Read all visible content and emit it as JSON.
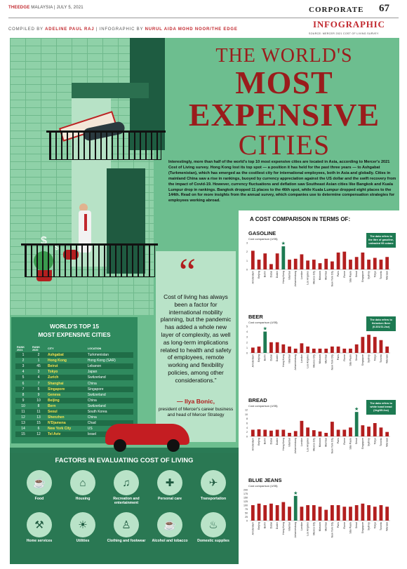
{
  "header": {
    "masthead_brand": "THEEDGE",
    "masthead_rest": " MALAYSIA  |  JULY 5, 2021",
    "section": "CORPORATE",
    "page_number": "67",
    "tag": "INFOGRAPHIC",
    "compiled_prefix": "COMPILED BY ",
    "compiler": "ADELINE PAUL RAJ",
    "infographic_prefix": " | INFOGRAPHIC BY ",
    "designer": "NURUL AIDA MOHD NOOR/THE EDGE",
    "source": "SOURCE: MERCER 2021 COST OF LIVING SURVEY"
  },
  "title": {
    "line1": "THE WORLD'S",
    "line2": "MOST",
    "line3": "EXPENSIVE",
    "line4": "CITIES"
  },
  "intro": "Interestingly, more than half of the world's top 10 most expensive cities are located in Asia, according to Mercer's 2021 Cost of Living survey. Hong Kong lost its top spot — a position it has held for the past three years — to Ashgabat (Turkmenistan), which has emerged as the costliest city for international employees, both in Asia and globally. Cities in mainland China saw a rise in rankings, buoyed by currency appreciation against the US dollar and the swift recovery from the impact of Covid-19. However, currency fluctuations and deflation saw Southeast Asian cities like Bangkok and Kuala Lumpur drop in rankings. Bangkok dropped 11 places to the 46th spot, while Kuala Lumpur dropped eight places to the 144th. Read on for more insights from the annual survey, which companies use to determine compensation strategies for employees working abroad.",
  "quote": {
    "mark": "“",
    "text": "Cost of living has always been a factor for international mobility planning, but the pandemic has added a whole new layer of complexity, as well as long-term implications related to health and safety of employees, remote working and flexibility policies, among other considerations.”",
    "name": "— Ilya Bonic,",
    "role": "president of Mercer's career business and head of Mercer Strategy"
  },
  "top15": {
    "title_line1": "WORLD'S TOP 15",
    "title_line2": "MOST EXPENSIVE CITIES",
    "headers": [
      "RANK 2021",
      "RANK 2020",
      "CITY",
      "LOCATION"
    ],
    "rows": [
      [
        "1",
        "2",
        "Ashgabat",
        "Turkmenistan"
      ],
      [
        "2",
        "1",
        "Hong Kong",
        "Hong Kong (SAR)"
      ],
      [
        "3",
        "45",
        "Beirut",
        "Lebanon"
      ],
      [
        "4",
        "3",
        "Tokyo",
        "Japan"
      ],
      [
        "5",
        "4",
        "Zurich",
        "Switzerland"
      ],
      [
        "6",
        "7",
        "Shanghai",
        "China"
      ],
      [
        "7",
        "5",
        "Singapore",
        "Singapore"
      ],
      [
        "8",
        "9",
        "Geneva",
        "Switzerland"
      ],
      [
        "9",
        "10",
        "Beijing",
        "China"
      ],
      [
        "10",
        "8",
        "Bern",
        "Switzerland"
      ],
      [
        "11",
        "11",
        "Seoul",
        "South Korea"
      ],
      [
        "12",
        "13",
        "Shenzhen",
        "China"
      ],
      [
        "13",
        "15",
        "N'Djamena",
        "Chad"
      ],
      [
        "14",
        "6",
        "New York City",
        "US"
      ],
      [
        "15",
        "12",
        "Tel Aviv",
        "Israel"
      ]
    ]
  },
  "factors": {
    "title": "FACTORS IN EVALUATING COST OF LIVING",
    "items": [
      {
        "label": "Food",
        "icon": "food-icon",
        "glyph": "☕"
      },
      {
        "label": "Housing",
        "icon": "housing-icon",
        "glyph": "⌂"
      },
      {
        "label": "Recreation and entertainment",
        "icon": "recreation-icon",
        "glyph": "♫"
      },
      {
        "label": "Personal care",
        "icon": "personal-care-icon",
        "glyph": "✚"
      },
      {
        "label": "Transportation",
        "icon": "transportation-icon",
        "glyph": "✈"
      },
      {
        "label": "Home services",
        "icon": "home-services-icon",
        "glyph": "⚒"
      },
      {
        "label": "Utilities",
        "icon": "utilities-icon",
        "glyph": "☀"
      },
      {
        "label": "Clothing and footwear",
        "icon": "clothing-icon",
        "glyph": "♙"
      },
      {
        "label": "Alcohol and tobacco",
        "icon": "alcohol-icon",
        "glyph": "☕"
      },
      {
        "label": "Domestic supplies",
        "icon": "domestic-supplies-icon",
        "glyph": "♨"
      }
    ]
  },
  "comparison": {
    "title": "A COST COMPARISON IN TERMS OF:",
    "unit": "Cost comparison (US$)",
    "cities": [
      "Amsterdam",
      "Beijing",
      "Berlin",
      "Dubai",
      "Dublin",
      "Hong Kong",
      "Istanbul",
      "Johannesburg",
      "London",
      "Los Angeles",
      "Mexico City",
      "Moscow",
      "Mumbai",
      "New York City",
      "Paris",
      "Rome",
      "São Paulo",
      "Seoul",
      "Singapore",
      "Sydney",
      "Tokyo",
      "Toronto",
      "Warsaw"
    ],
    "highlight_color": "#1d7a52",
    "bar_color": "#b31f1f"
  },
  "chart_data": [
    {
      "type": "bar",
      "title": "GASOLINE",
      "ylabel": "Cost comparison (US$)",
      "ylim": [
        0,
        3
      ],
      "yticks": [
        "0",
        "1",
        "2",
        "3"
      ],
      "highlight": "Hong Kong",
      "note": "The data refers to the litre of gasoline, unleaded 95 octane",
      "categories": [
        "Amsterdam",
        "Beijing",
        "Berlin",
        "Dubai",
        "Dublin",
        "Hong Kong",
        "Istanbul",
        "Johannesburg",
        "London",
        "Los Angeles",
        "Mexico City",
        "Moscow",
        "Mumbai",
        "New York City",
        "Paris",
        "Rome",
        "São Paulo",
        "Seoul",
        "Singapore",
        "Sydney",
        "Tokyo",
        "Toronto",
        "Warsaw"
      ],
      "values": [
        2.1,
        1.1,
        1.8,
        0.6,
        1.8,
        2.6,
        1.1,
        1.2,
        1.7,
        1.0,
        1.1,
        0.7,
        1.2,
        0.9,
        1.9,
        2.0,
        1.1,
        1.4,
        1.9,
        1.1,
        1.3,
        1.1,
        1.4
      ]
    },
    {
      "type": "bar",
      "title": "BEER",
      "ylabel": "Cost comparison (US$)",
      "ylim": [
        0,
        5
      ],
      "yticks": [
        "0",
        "1",
        "2",
        "3",
        "4",
        "5"
      ],
      "highlight": "Berlin",
      "note": "The data refers to Heineken Beer (0.331/11.2oz)",
      "categories": [
        "Amsterdam",
        "Beijing",
        "Berlin",
        "Dubai",
        "Dublin",
        "Hong Kong",
        "Istanbul",
        "Johannesburg",
        "London",
        "Los Angeles",
        "Mexico City",
        "Moscow",
        "Mumbai",
        "New York City",
        "Paris",
        "Rome",
        "São Paulo",
        "Seoul",
        "Singapore",
        "Sydney",
        "Tokyo",
        "Toronto",
        "Warsaw"
      ],
      "values": [
        1.0,
        1.2,
        4.0,
        2.0,
        2.0,
        1.6,
        1.2,
        0.8,
        1.8,
        1.2,
        0.8,
        0.8,
        0.8,
        1.2,
        1.2,
        0.8,
        0.8,
        1.6,
        3.0,
        3.4,
        3.0,
        2.4,
        1.2
      ]
    },
    {
      "type": "bar",
      "title": "BREAD",
      "ylabel": "Cost comparison (US$)",
      "ylim": [
        0,
        12
      ],
      "yticks": [
        "0",
        "2",
        "4",
        "6",
        "8",
        "10",
        "12"
      ],
      "highlight": "Seoul",
      "note": "The data refers to white toast bread (1kg/35.2oz)",
      "categories": [
        "Amsterdam",
        "Beijing",
        "Berlin",
        "Dubai",
        "Dublin",
        "Hong Kong",
        "Istanbul",
        "Johannesburg",
        "London",
        "Los Angeles",
        "Mexico City",
        "Moscow",
        "Mumbai",
        "New York City",
        "Paris",
        "Rome",
        "São Paulo",
        "Seoul",
        "Singapore",
        "Sydney",
        "Tokyo",
        "Toronto",
        "Warsaw"
      ],
      "values": [
        3.0,
        3.2,
        3.0,
        2.6,
        3.0,
        3.0,
        1.6,
        2.4,
        7.0,
        4.0,
        2.8,
        2.2,
        1.6,
        6.6,
        3.0,
        3.0,
        4.0,
        11.0,
        5.0,
        4.4,
        6.0,
        4.0,
        2.0
      ]
    },
    {
      "type": "bar",
      "title": "BLUE JEANS",
      "ylabel": "Cost comparison (US$)",
      "ylim": [
        0,
        200
      ],
      "yticks": [
        "0",
        "25",
        "50",
        "75",
        "100",
        "125",
        "150",
        "175",
        "200"
      ],
      "highlight": "Johannesburg",
      "categories": [
        "Amsterdam",
        "Beijing",
        "Berlin",
        "Dubai",
        "Dublin",
        "Hong Kong",
        "Istanbul",
        "Johannesburg",
        "London",
        "Los Angeles",
        "Mexico City",
        "Moscow",
        "Mumbai",
        "New York City",
        "Paris",
        "Rome",
        "São Paulo",
        "Seoul",
        "Singapore",
        "Sydney",
        "Tokyo",
        "Toronto",
        "Warsaw"
      ],
      "values": [
        100,
        110,
        100,
        110,
        100,
        120,
        90,
        160,
        90,
        100,
        100,
        90,
        70,
        100,
        100,
        90,
        90,
        100,
        110,
        100,
        90,
        100,
        90
      ]
    }
  ]
}
